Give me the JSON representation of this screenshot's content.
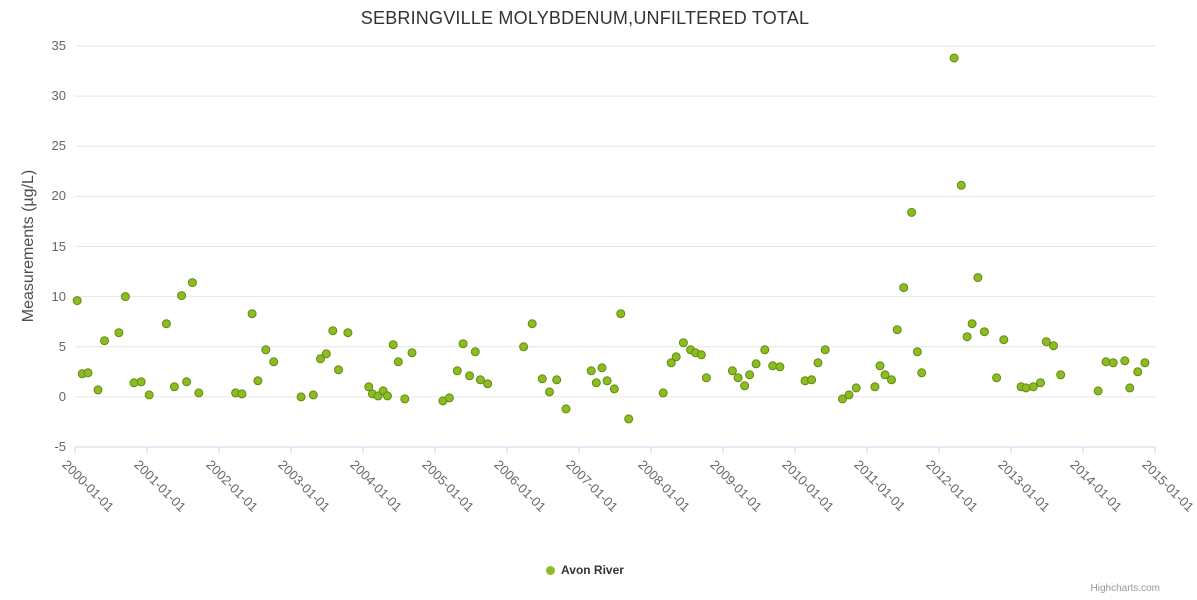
{
  "title": "SEBRINGVILLE MOLYBDENUM,UNFILTERED TOTAL",
  "y_axis": {
    "title": "Measurements (µg/L)",
    "ticks": [
      -5,
      0,
      5,
      10,
      15,
      20,
      25,
      30,
      35
    ],
    "min": -5,
    "max": 35
  },
  "x_axis": {
    "labels": [
      "2000-01-01",
      "2001-01-01",
      "2002-01-01",
      "2003-01-01",
      "2004-01-01",
      "2005-01-01",
      "2006-01-01",
      "2007-01-01",
      "2008-01-01",
      "2009-01-01",
      "2010-01-01",
      "2011-01-01",
      "2012-01-01",
      "2013-01-01",
      "2014-01-01",
      "2015-01-01"
    ],
    "min": 2000,
    "max": 2015
  },
  "legend": {
    "label": "Avon River"
  },
  "credit": "Highcharts.com",
  "colors": {
    "point_fill": "#8bbc21",
    "point_stroke": "#648a14",
    "grid": "#e6e6e6",
    "axis": "#ccd6eb",
    "tick_label": "#666666",
    "title": "#333333"
  },
  "chart_data": {
    "type": "scatter",
    "title": "SEBRINGVILLE MOLYBDENUM,UNFILTERED TOTAL",
    "xlabel": "",
    "ylabel": "Measurements (µg/L)",
    "xlim": [
      2000,
      2015
    ],
    "ylim": [
      -5,
      35
    ],
    "grid": "horizontal",
    "legend_position": "bottom",
    "series": [
      {
        "name": "Avon River",
        "color": "#8bbc21",
        "points": [
          [
            2000.03,
            9.6
          ],
          [
            2000.1,
            2.3
          ],
          [
            2000.18,
            2.4
          ],
          [
            2000.32,
            0.7
          ],
          [
            2000.41,
            5.6
          ],
          [
            2000.61,
            6.4
          ],
          [
            2000.7,
            10.0
          ],
          [
            2000.82,
            1.4
          ],
          [
            2000.92,
            1.5
          ],
          [
            2001.03,
            0.2
          ],
          [
            2001.27,
            7.3
          ],
          [
            2001.38,
            1.0
          ],
          [
            2001.48,
            10.1
          ],
          [
            2001.55,
            1.5
          ],
          [
            2001.63,
            11.4
          ],
          [
            2001.72,
            0.4
          ],
          [
            2002.23,
            0.4
          ],
          [
            2002.32,
            0.3
          ],
          [
            2002.46,
            8.3
          ],
          [
            2002.54,
            1.6
          ],
          [
            2002.65,
            4.7
          ],
          [
            2002.76,
            3.5
          ],
          [
            2003.14,
            0.0
          ],
          [
            2003.31,
            0.2
          ],
          [
            2003.41,
            3.8
          ],
          [
            2003.49,
            4.3
          ],
          [
            2003.58,
            6.6
          ],
          [
            2003.66,
            2.7
          ],
          [
            2003.79,
            6.4
          ],
          [
            2004.08,
            1.0
          ],
          [
            2004.13,
            0.3
          ],
          [
            2004.21,
            0.1
          ],
          [
            2004.28,
            0.6
          ],
          [
            2004.34,
            0.1
          ],
          [
            2004.42,
            5.2
          ],
          [
            2004.49,
            3.5
          ],
          [
            2004.58,
            -0.2
          ],
          [
            2004.68,
            4.4
          ],
          [
            2005.11,
            -0.4
          ],
          [
            2005.2,
            -0.1
          ],
          [
            2005.31,
            2.6
          ],
          [
            2005.39,
            5.3
          ],
          [
            2005.48,
            2.1
          ],
          [
            2005.56,
            4.5
          ],
          [
            2005.63,
            1.7
          ],
          [
            2005.73,
            1.3
          ],
          [
            2006.23,
            5.0
          ],
          [
            2006.35,
            7.3
          ],
          [
            2006.49,
            1.8
          ],
          [
            2006.59,
            0.5
          ],
          [
            2006.69,
            1.7
          ],
          [
            2006.82,
            -1.2
          ],
          [
            2007.17,
            2.6
          ],
          [
            2007.24,
            1.4
          ],
          [
            2007.32,
            2.9
          ],
          [
            2007.39,
            1.6
          ],
          [
            2007.49,
            0.8
          ],
          [
            2007.58,
            8.3
          ],
          [
            2007.69,
            -2.2
          ],
          [
            2008.17,
            0.4
          ],
          [
            2008.28,
            3.4
          ],
          [
            2008.35,
            4.0
          ],
          [
            2008.45,
            5.4
          ],
          [
            2008.55,
            4.7
          ],
          [
            2008.62,
            4.4
          ],
          [
            2008.7,
            4.2
          ],
          [
            2008.77,
            1.9
          ],
          [
            2009.13,
            2.6
          ],
          [
            2009.21,
            1.9
          ],
          [
            2009.3,
            1.1
          ],
          [
            2009.37,
            2.2
          ],
          [
            2009.46,
            3.3
          ],
          [
            2009.58,
            4.7
          ],
          [
            2009.69,
            3.1
          ],
          [
            2009.79,
            3.0
          ],
          [
            2010.14,
            1.6
          ],
          [
            2010.23,
            1.7
          ],
          [
            2010.32,
            3.4
          ],
          [
            2010.42,
            4.7
          ],
          [
            2010.66,
            -0.2
          ],
          [
            2010.75,
            0.2
          ],
          [
            2010.85,
            0.9
          ],
          [
            2011.11,
            1.0
          ],
          [
            2011.18,
            3.1
          ],
          [
            2011.25,
            2.2
          ],
          [
            2011.34,
            1.7
          ],
          [
            2011.42,
            6.7
          ],
          [
            2011.51,
            10.9
          ],
          [
            2011.62,
            18.4
          ],
          [
            2011.7,
            4.5
          ],
          [
            2011.76,
            2.4
          ],
          [
            2012.21,
            33.8
          ],
          [
            2012.31,
            21.1
          ],
          [
            2012.39,
            6.0
          ],
          [
            2012.46,
            7.3
          ],
          [
            2012.54,
            11.9
          ],
          [
            2012.63,
            6.5
          ],
          [
            2012.8,
            1.9
          ],
          [
            2012.9,
            5.7
          ],
          [
            2013.14,
            1.0
          ],
          [
            2013.21,
            0.9
          ],
          [
            2013.31,
            1.0
          ],
          [
            2013.41,
            1.4
          ],
          [
            2013.49,
            5.5
          ],
          [
            2013.59,
            5.1
          ],
          [
            2013.69,
            2.2
          ],
          [
            2014.21,
            0.6
          ],
          [
            2014.32,
            3.5
          ],
          [
            2014.42,
            3.4
          ],
          [
            2014.58,
            3.6
          ],
          [
            2014.65,
            0.9
          ],
          [
            2014.76,
            2.5
          ],
          [
            2014.86,
            3.4
          ]
        ]
      }
    ]
  }
}
